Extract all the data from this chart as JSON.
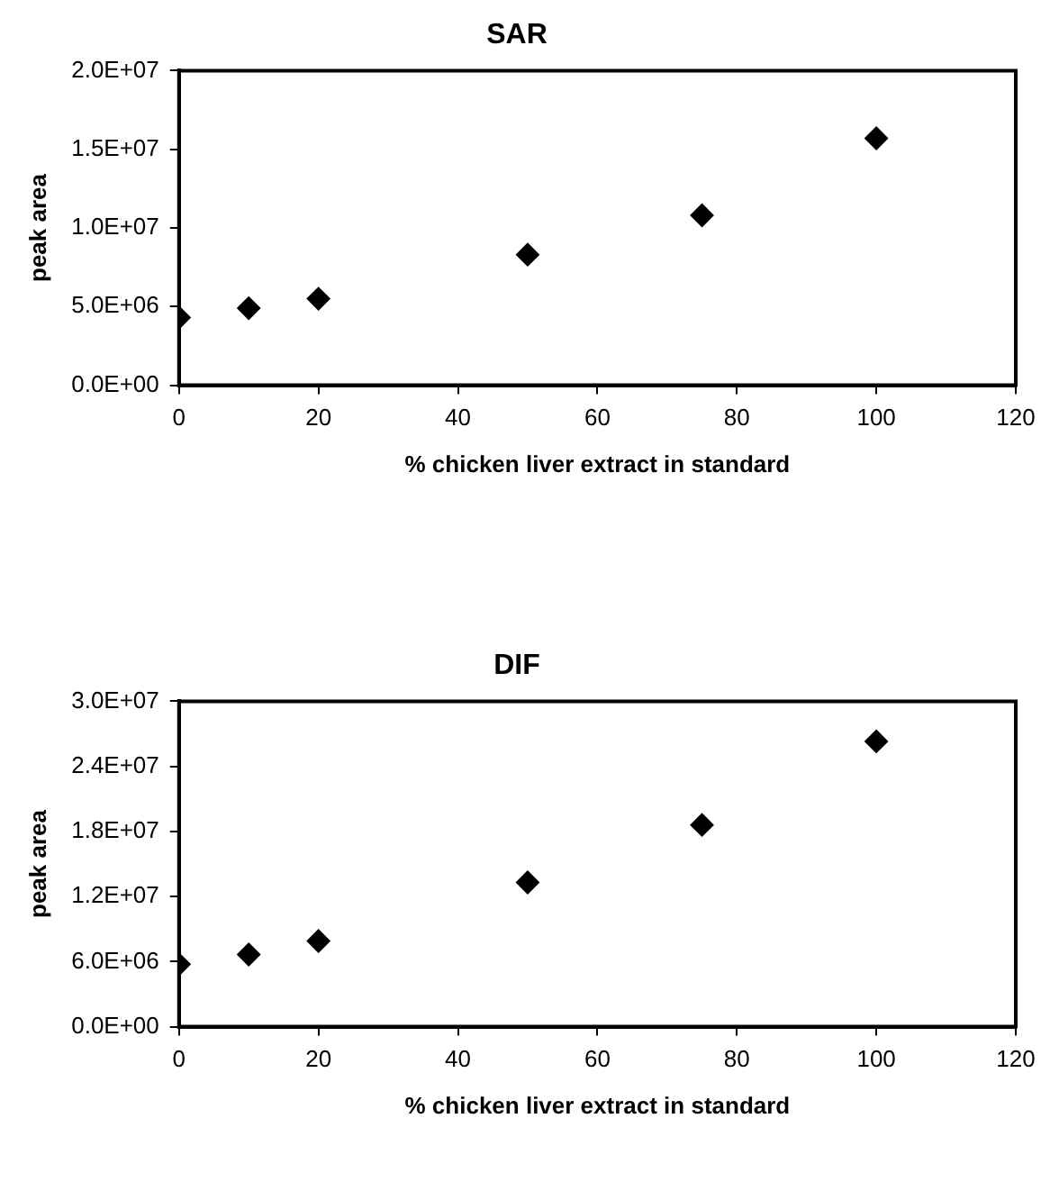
{
  "chart_data": [
    {
      "type": "scatter",
      "title": "SAR",
      "xlabel": "% chicken liver extract in standard",
      "ylabel": "peak area",
      "marker": "diamond",
      "grid": false,
      "legend": false,
      "x": [
        0,
        10,
        20,
        50,
        75,
        100
      ],
      "series": [
        {
          "color": "#000000",
          "values": [
            4300000,
            4900000,
            5500000,
            8300000,
            10800000,
            15700000
          ]
        }
      ],
      "xlim": [
        0,
        120
      ],
      "xticks": [
        0,
        20,
        40,
        60,
        80,
        100,
        120
      ],
      "ylim": [
        0,
        20000000
      ],
      "yticks": [
        {
          "value": 0,
          "label": "0.0E+00"
        },
        {
          "value": 5000000,
          "label": "5.0E+06"
        },
        {
          "value": 10000000,
          "label": "1.0E+07"
        },
        {
          "value": 15000000,
          "label": "1.5E+07"
        },
        {
          "value": 20000000,
          "label": "2.0E+07"
        }
      ]
    },
    {
      "type": "scatter",
      "title": "DIF",
      "xlabel": "% chicken liver extract in standard",
      "ylabel": "peak area",
      "marker": "diamond",
      "grid": false,
      "legend": false,
      "x": [
        0,
        10,
        20,
        50,
        75,
        100
      ],
      "series": [
        {
          "color": "#000000",
          "values": [
            5750000,
            6650000,
            7900000,
            13300000,
            18600000,
            26300000
          ]
        }
      ],
      "xlim": [
        0,
        120
      ],
      "xticks": [
        0,
        20,
        40,
        60,
        80,
        100,
        120
      ],
      "ylim": [
        0,
        30000000
      ],
      "yticks": [
        {
          "value": 0,
          "label": "0.0E+00"
        },
        {
          "value": 6000000,
          "label": "6.0E+06"
        },
        {
          "value": 12000000,
          "label": "1.2E+07"
        },
        {
          "value": 18000000,
          "label": "1.8E+07"
        },
        {
          "value": 24000000,
          "label": "2.4E+07"
        },
        {
          "value": 30000000,
          "label": "3.0E+07"
        }
      ]
    }
  ]
}
